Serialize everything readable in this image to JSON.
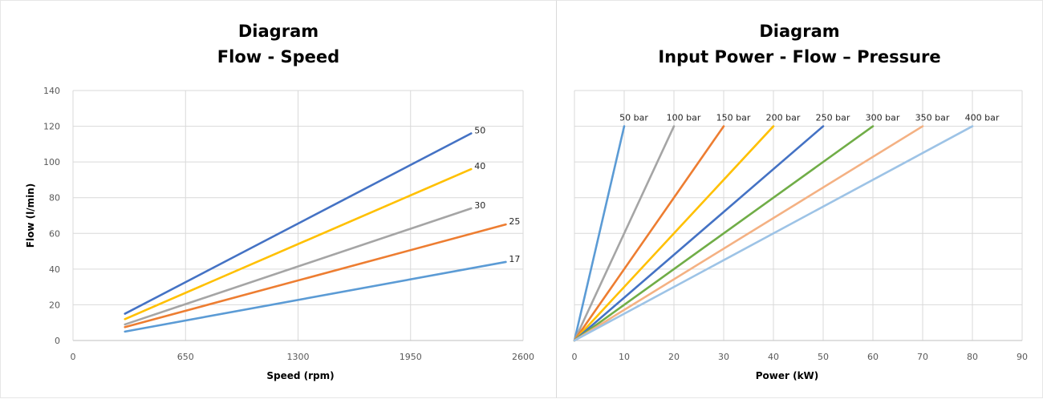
{
  "chart_data": [
    {
      "type": "line",
      "title": "Diagram",
      "subtitle": "Flow - Speed",
      "xlabel": "Speed (rpm)",
      "ylabel": "Flow (l/min)",
      "xlim": [
        0,
        2600
      ],
      "ylim": [
        0,
        140
      ],
      "x_ticks": [
        "0",
        "650",
        "1300",
        "1950",
        "2600"
      ],
      "y_ticks": [
        "0",
        "20",
        "40",
        "60",
        "80",
        "100",
        "120",
        "140"
      ],
      "grid": true,
      "series": [
        {
          "name": "50",
          "color": "#4472C4",
          "x": [
            300,
            2300
          ],
          "y": [
            15,
            116
          ]
        },
        {
          "name": "40",
          "color": "#FFC000",
          "x": [
            300,
            2300
          ],
          "y": [
            12,
            96
          ]
        },
        {
          "name": "30",
          "color": "#A5A5A5",
          "x": [
            300,
            2300
          ],
          "y": [
            9,
            74
          ]
        },
        {
          "name": "25",
          "color": "#ED7D31",
          "x": [
            300,
            2500
          ],
          "y": [
            7.5,
            65
          ]
        },
        {
          "name": "17",
          "color": "#5B9BD5",
          "x": [
            300,
            2500
          ],
          "y": [
            5,
            44
          ]
        }
      ]
    },
    {
      "type": "line",
      "title": "Diagram",
      "subtitle": "Input Power - Flow – Pressure",
      "xlabel": "Power (kW)",
      "xlim": [
        0,
        90
      ],
      "ylim": [
        0,
        140
      ],
      "x_ticks": [
        "0",
        "10",
        "20",
        "30",
        "40",
        "50",
        "60",
        "70",
        "80",
        "90"
      ],
      "grid": true,
      "series": [
        {
          "name": "50 bar",
          "color": "#5B9BD5",
          "x": [
            0,
            10
          ],
          "y": [
            0,
            120
          ]
        },
        {
          "name": "100 bar",
          "color": "#A5A5A5",
          "x": [
            0,
            20
          ],
          "y": [
            0,
            120
          ]
        },
        {
          "name": "150 bar",
          "color": "#ED7D31",
          "x": [
            0,
            30
          ],
          "y": [
            0,
            120
          ]
        },
        {
          "name": "200 bar",
          "color": "#FFC000",
          "x": [
            0,
            40
          ],
          "y": [
            0,
            120
          ]
        },
        {
          "name": "250 bar",
          "color": "#4472C4",
          "x": [
            0,
            50
          ],
          "y": [
            0,
            120
          ]
        },
        {
          "name": "300 bar",
          "color": "#70AD47",
          "x": [
            0,
            60
          ],
          "y": [
            0,
            120
          ]
        },
        {
          "name": "350 bar",
          "color": "#F4B183",
          "x": [
            0,
            70
          ],
          "y": [
            0,
            120
          ]
        },
        {
          "name": "400 bar",
          "color": "#9DC3E6",
          "x": [
            0,
            80
          ],
          "y": [
            0,
            120
          ]
        }
      ]
    }
  ]
}
